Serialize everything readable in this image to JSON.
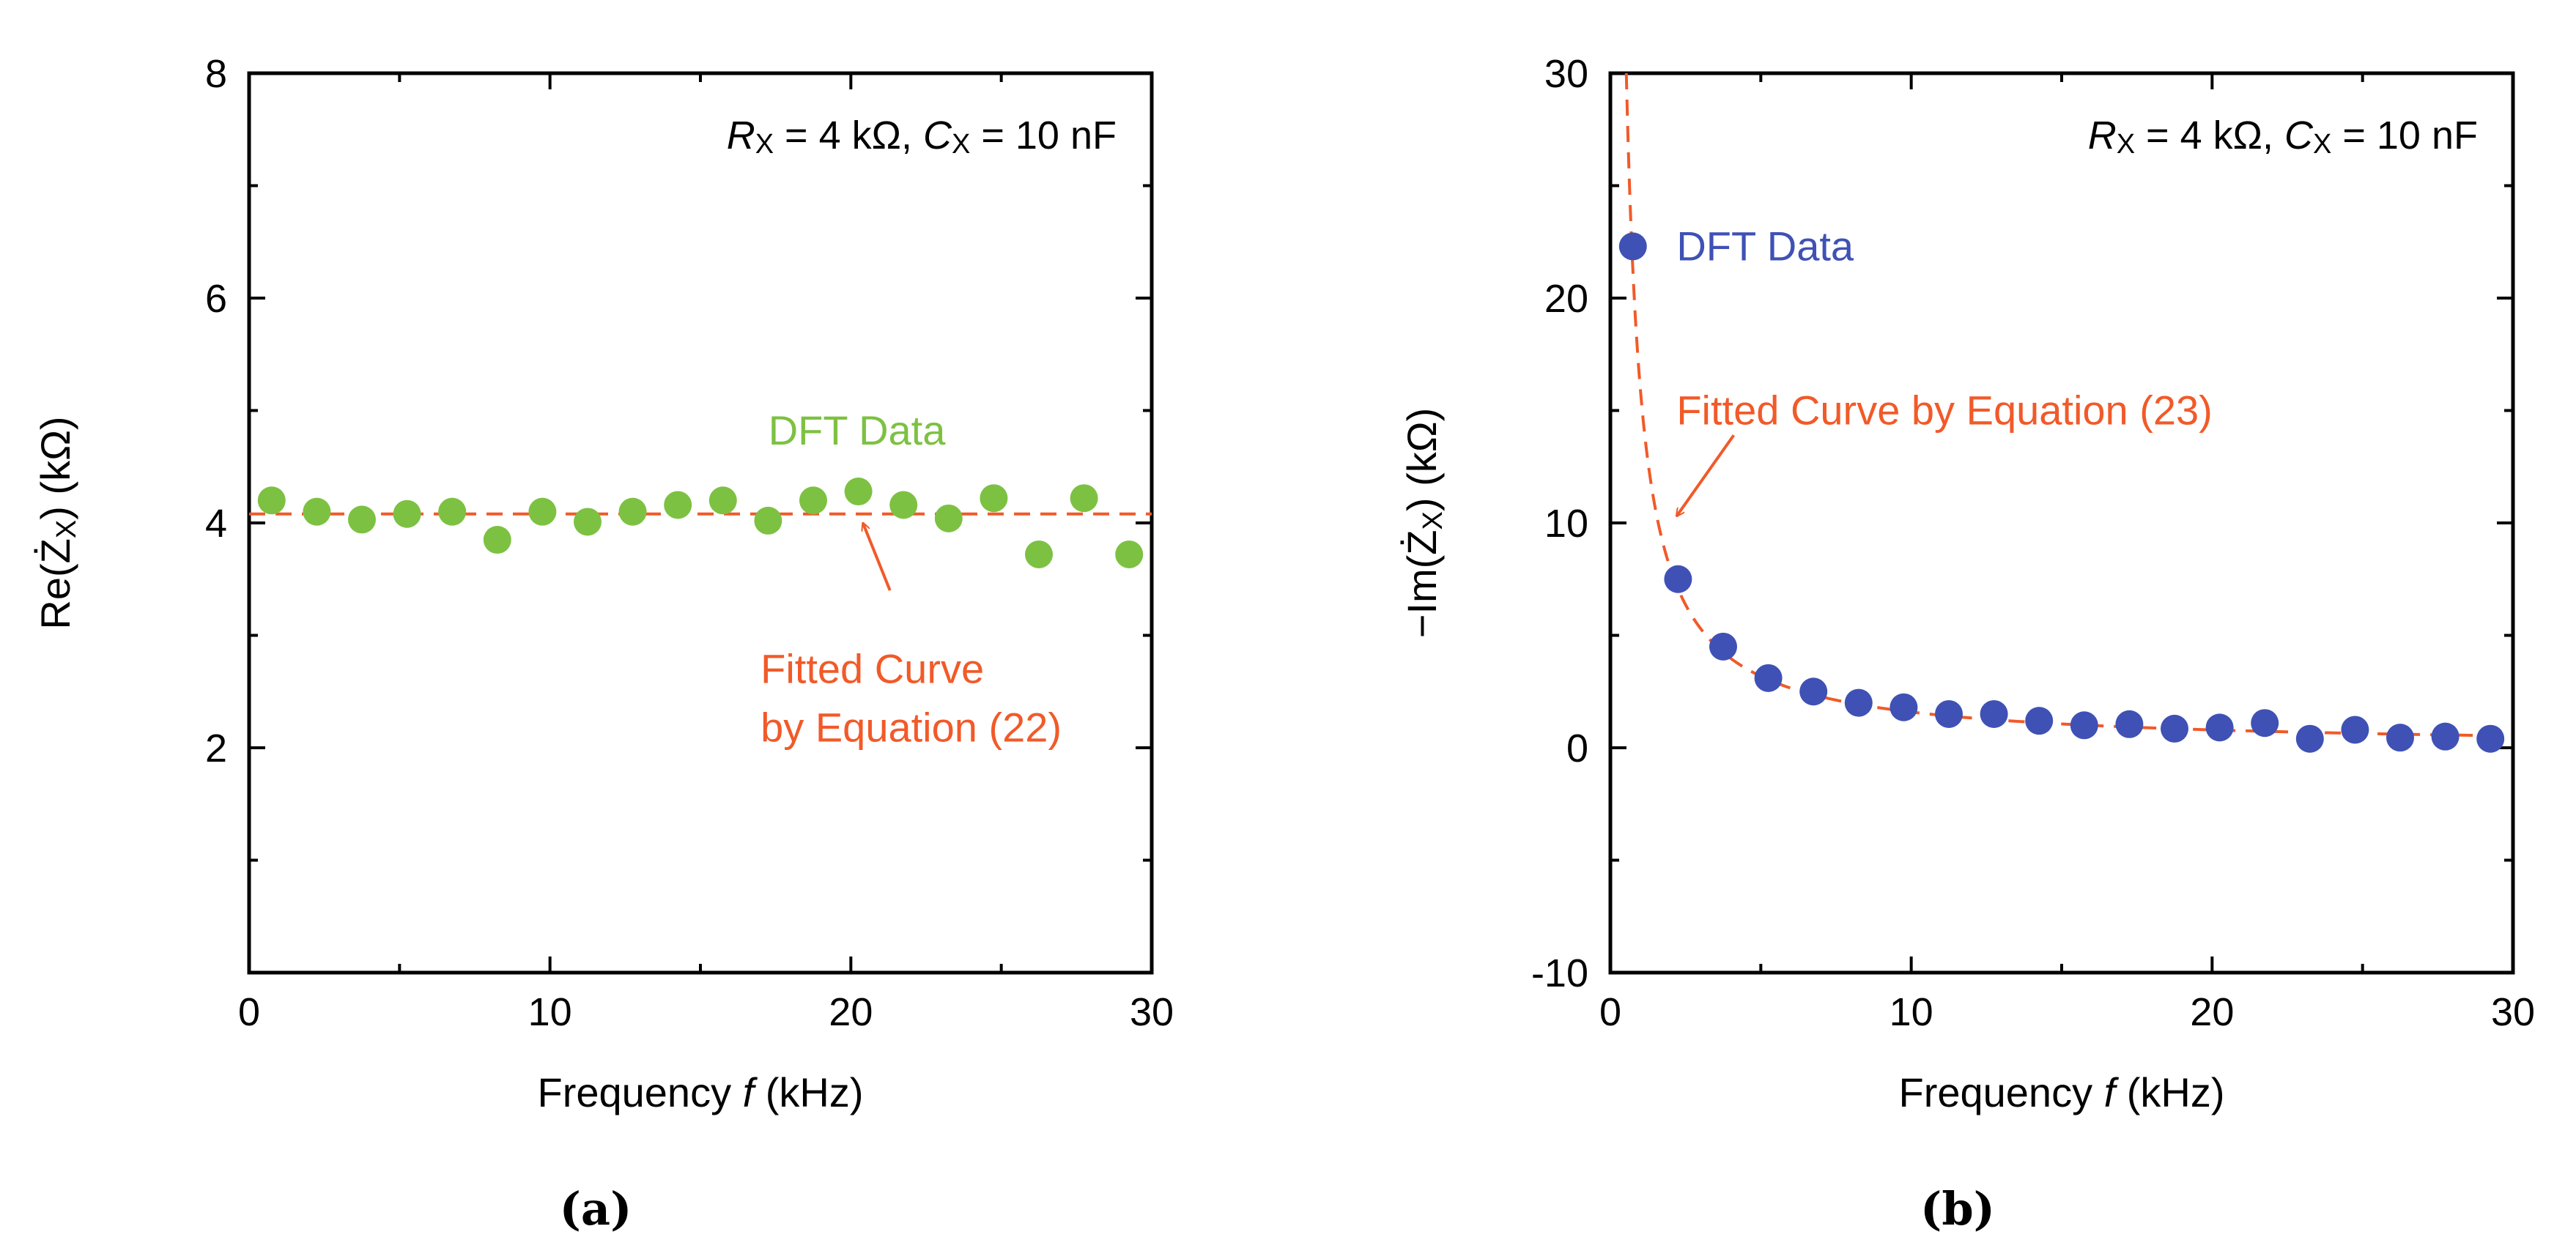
{
  "colors": {
    "axis": "#000000",
    "green_points": "#7dc142",
    "blue_points": "#3f51b5",
    "fit_curve": "#f15a29"
  },
  "chart_data": [
    {
      "type": "scatter",
      "panel_label": "(a)",
      "title": "",
      "xlabel_pre": "Frequency ",
      "xlabel_var": "f",
      "xlabel_post": " (kHz)",
      "ylabel": "Re(Ż",
      "ylabel_sub": "X",
      "ylabel_post": ") (kΩ)",
      "xlim": [
        0,
        30
      ],
      "ylim": [
        0,
        8
      ],
      "xticks": [
        0,
        10,
        20,
        30
      ],
      "xtick_labels": [
        "0",
        "10",
        "20",
        "30"
      ],
      "yticks": [
        2,
        4,
        6,
        8
      ],
      "ytick_labels": [
        "2",
        "4",
        "6",
        "8"
      ],
      "x_minor_step": 5,
      "y_minor_step": 1,
      "condition_text": {
        "r_sym": "R",
        "r_sub": "X",
        "r_val": " = 4 kΩ, ",
        "c_sym": "C",
        "c_sub": "X",
        "c_val": " = 10 nF"
      },
      "series": [
        {
          "name": "DFT Data",
          "kind": "points",
          "color_key": "green_points",
          "x": [
            0.75,
            2.25,
            3.75,
            5.25,
            6.75,
            8.25,
            9.75,
            11.25,
            12.75,
            14.25,
            15.75,
            17.25,
            18.75,
            20.25,
            21.75,
            23.25,
            24.75,
            26.25,
            27.75,
            29.25
          ],
          "y": [
            4.2,
            4.1,
            4.03,
            4.08,
            4.1,
            3.85,
            4.1,
            4.01,
            4.1,
            4.16,
            4.2,
            4.02,
            4.2,
            4.28,
            4.16,
            4.04,
            4.22,
            3.72,
            4.22,
            3.72
          ]
        },
        {
          "name": "Fitted Curve by Equation (22)",
          "kind": "constant",
          "color_key": "fit_curve",
          "value": 4.08
        }
      ],
      "annotations": [
        {
          "role": "data-label",
          "lines": [
            "DFT Data"
          ],
          "color_key": "green_points",
          "at": [
            20.2,
            4.82
          ]
        },
        {
          "role": "fit-label",
          "lines": [
            "Fitted Curve",
            "by Equation (22)"
          ],
          "color_key": "fit_curve",
          "at": [
            17.0,
            2.7
          ]
        },
        {
          "role": "arrow",
          "color_key": "fit_curve",
          "from": [
            21.3,
            3.4
          ],
          "to": [
            20.4,
            4.0
          ]
        }
      ]
    },
    {
      "type": "scatter",
      "panel_label": "(b)",
      "title": "",
      "xlabel_pre": "Frequency ",
      "xlabel_var": "f",
      "xlabel_post": " (kHz)",
      "ylabel": "−Im(Ż",
      "ylabel_sub": "X",
      "ylabel_post": ") (kΩ)",
      "xlim": [
        0,
        30
      ],
      "ylim": [
        -10,
        30
      ],
      "xticks": [
        0,
        10,
        20,
        30
      ],
      "xtick_labels": [
        "0",
        "10",
        "20",
        "30"
      ],
      "yticks": [
        -10,
        0,
        10,
        20,
        30
      ],
      "ytick_labels": [
        "-10",
        "0",
        "10",
        "20",
        "30"
      ],
      "x_minor_step": 5,
      "y_minor_step": 5,
      "condition_text": {
        "r_sym": "R",
        "r_sub": "X",
        "r_val": " = 4 kΩ, ",
        "c_sym": "C",
        "c_sub": "X",
        "c_val": " = 10 nF"
      },
      "series": [
        {
          "name": "DFT Data",
          "kind": "points",
          "color_key": "blue_points",
          "x": [
            0.75,
            2.25,
            3.75,
            5.25,
            6.75,
            8.25,
            9.75,
            11.25,
            12.75,
            14.25,
            15.75,
            17.25,
            18.75,
            20.25,
            21.75,
            23.25,
            24.75,
            26.25,
            27.75,
            29.25
          ],
          "y": [
            22.3,
            7.5,
            4.5,
            3.1,
            2.5,
            2.0,
            1.8,
            1.5,
            1.5,
            1.2,
            1.0,
            1.05,
            0.85,
            0.9,
            1.1,
            0.4,
            0.8,
            0.45,
            0.5,
            0.4
          ]
        },
        {
          "name": "Fitted Curve by Equation (23)",
          "kind": "inverse",
          "color_key": "fit_curve",
          "coefficient": 15.9,
          "x_start": 0.53,
          "x_end": 29.8
        }
      ],
      "annotations": [
        {
          "role": "data-label",
          "lines": [
            "DFT Data"
          ],
          "color_key": "blue_points",
          "at": [
            2.2,
            22.3
          ]
        },
        {
          "role": "fit-label",
          "lines": [
            "Fitted Curve by Equation (23)"
          ],
          "color_key": "fit_curve",
          "at": [
            2.2,
            15.0
          ]
        },
        {
          "role": "arrow",
          "color_key": "fit_curve",
          "from": [
            4.1,
            13.9
          ],
          "to": [
            2.2,
            10.3
          ]
        }
      ]
    }
  ]
}
